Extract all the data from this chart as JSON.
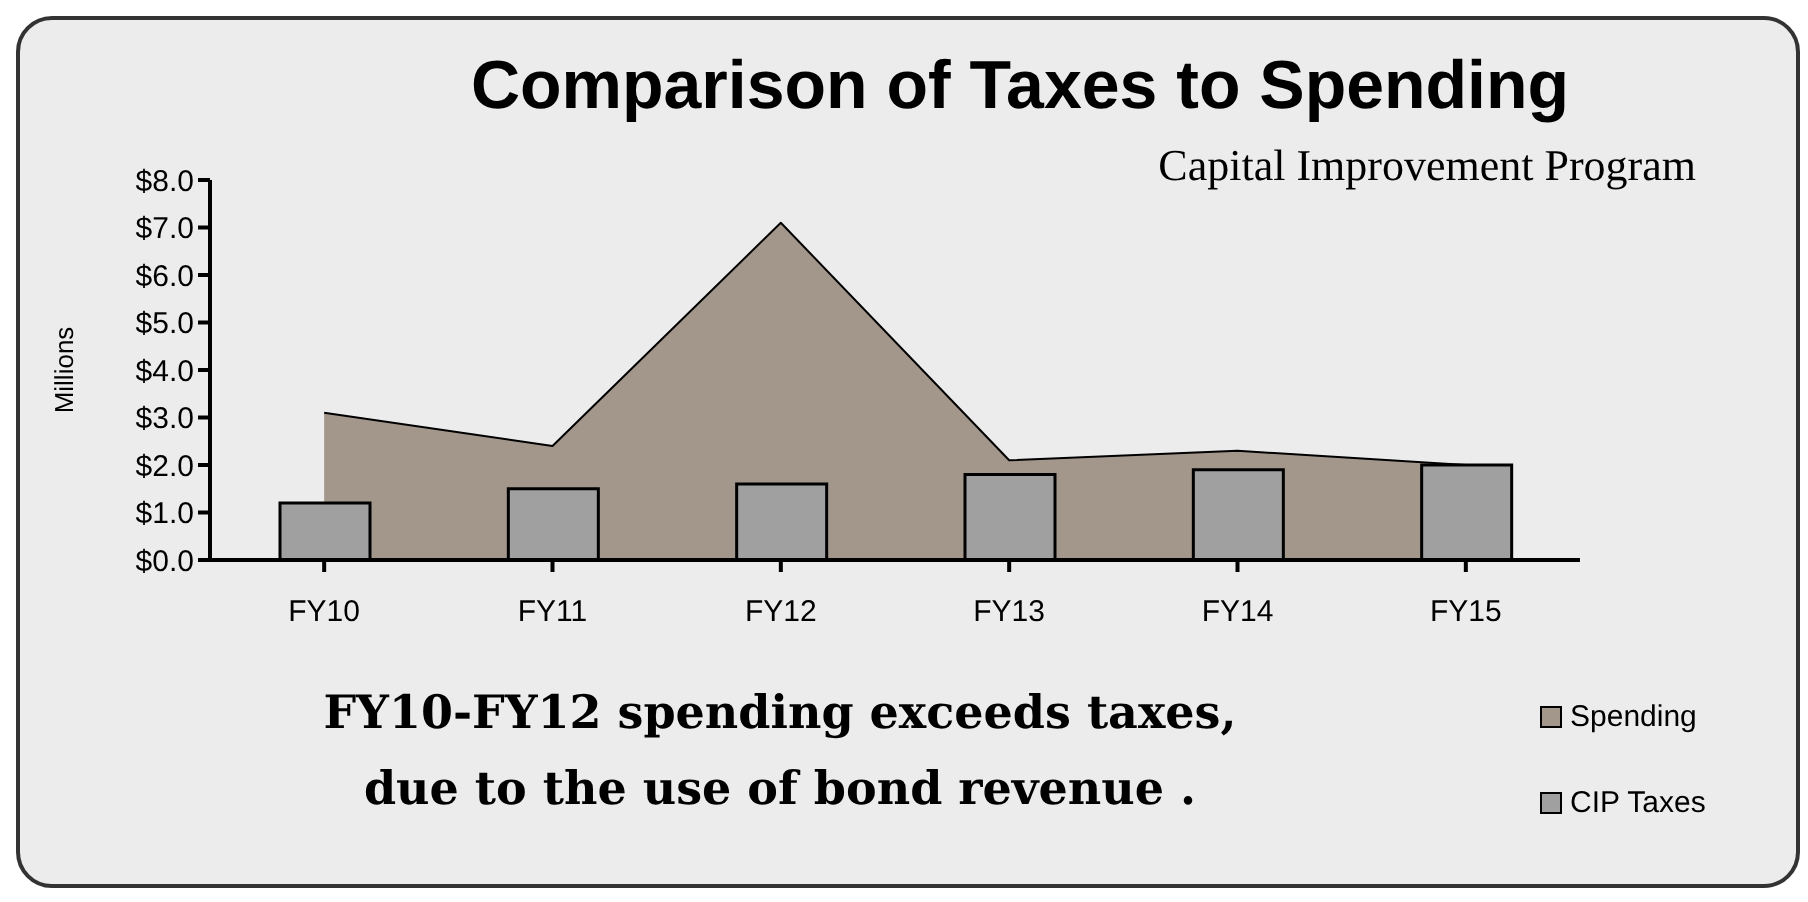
{
  "chart_data": {
    "type": "bar",
    "title": "Comparison of Taxes to Spending",
    "subtitle": "Capital Improvement Program",
    "ylabel": "Millions",
    "categories": [
      "FY10",
      "FY11",
      "FY12",
      "FY13",
      "FY14",
      "FY15"
    ],
    "series": [
      {
        "name": "Spending",
        "type": "area",
        "color": "#a3968a",
        "values": [
          3.1,
          2.4,
          7.1,
          2.1,
          2.3,
          2.0
        ]
      },
      {
        "name": "CIP Taxes",
        "color": "#a0a0a0",
        "values": [
          1.2,
          1.5,
          1.6,
          1.8,
          1.9,
          2.0
        ]
      }
    ],
    "ylim": [
      0,
      8
    ],
    "yticks": [
      {
        "value": 0,
        "label": "$0.0"
      },
      {
        "value": 1,
        "label": "$1.0"
      },
      {
        "value": 2,
        "label": "$2.0"
      },
      {
        "value": 3,
        "label": "$3.0"
      },
      {
        "value": 4,
        "label": "$4.0"
      },
      {
        "value": 5,
        "label": "$5.0"
      },
      {
        "value": 6,
        "label": "$6.0"
      },
      {
        "value": 7,
        "label": "$7.0"
      },
      {
        "value": 8,
        "label": "$8.0"
      }
    ],
    "grid": false,
    "legend": "bottom right",
    "annotations": [
      "FY10-FY12 spending exceeds taxes,\ndue to the use of bond revenue ."
    ]
  }
}
